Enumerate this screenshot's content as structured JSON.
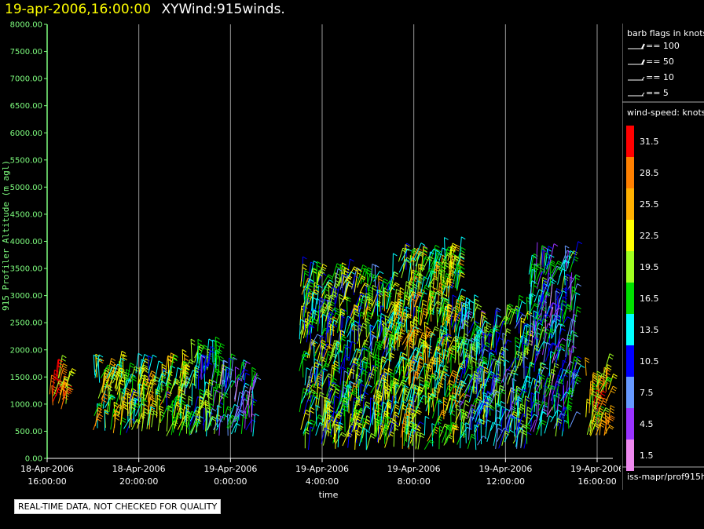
{
  "header": {
    "date": "19-apr-2006,16:00:00",
    "name": "XYWind:915winds."
  },
  "legend": {
    "barb_title": "barb flags in knots",
    "flags": [
      {
        "label": "== 100"
      },
      {
        "label": "== 50"
      },
      {
        "label": "== 10"
      },
      {
        "label": "== 5"
      }
    ],
    "speed_title": "wind-speed: knots",
    "scale": [
      {
        "label": "31.5",
        "color": "#ff0000"
      },
      {
        "label": "28.5",
        "color": "#ff8000"
      },
      {
        "label": "25.5",
        "color": "#ffb000"
      },
      {
        "label": "22.5",
        "color": "#ffff00"
      },
      {
        "label": "19.5",
        "color": "#a0ff20"
      },
      {
        "label": "16.5",
        "color": "#00e000"
      },
      {
        "label": "13.5",
        "color": "#00ffff"
      },
      {
        "label": "10.5",
        "color": "#0000ff"
      },
      {
        "label": "7.5",
        "color": "#6699ff"
      },
      {
        "label": "4.5",
        "color": "#9933ff"
      },
      {
        "label": "1.5",
        "color": "#ee88ee"
      }
    ],
    "source": "iss-mapr/prof915h"
  },
  "notice": "REAL-TIME DATA, NOT CHECKED FOR QUALITY",
  "chart_data": {
    "type": "scatter",
    "xlabel": "time",
    "ylabel": "915 Profiler Altitude (m agl)",
    "ylim": [
      0,
      8000
    ],
    "yticks": [
      "0.00",
      "500.00",
      "1000.00",
      "1500.00",
      "2000.00",
      "2500.00",
      "3000.00",
      "3500.00",
      "4000.00",
      "4500.00",
      "5000.00",
      "5500.00",
      "6000.00",
      "6500.00",
      "7000.00",
      "7500.00",
      "8000.00"
    ],
    "xticks": [
      {
        "date": "18-Apr-2006",
        "time": "16:00:00"
      },
      {
        "date": "18-Apr-2006",
        "time": "20:00:00"
      },
      {
        "date": "19-Apr-2006",
        "time": "0:00:00"
      },
      {
        "date": "19-Apr-2006",
        "time": "4:00:00"
      },
      {
        "date": "19-Apr-2006",
        "time": "8:00:00"
      },
      {
        "date": "19-Apr-2006",
        "time": "12:00:00"
      },
      {
        "date": "19-Apr-2006",
        "time": "16:00:00"
      }
    ],
    "grid": "vertical lines at ticks",
    "segments": [
      {
        "from": "18-Apr-2006 16:00",
        "to": "18-Apr-2006 17:00",
        "alt_min": 900,
        "alt_max": 1500,
        "dominant_speed": 25.5
      },
      {
        "from": "18-Apr-2006 18:00",
        "to": "18-Apr-2006 20:00",
        "alt_min": 400,
        "alt_max": 1600,
        "dominant_speed": 19.5
      },
      {
        "from": "18-Apr-2006 20:00",
        "to": "18-Apr-2006 22:00",
        "alt_min": 400,
        "alt_max": 1600,
        "dominant_speed": 19.5
      },
      {
        "from": "18-Apr-2006 22:00",
        "to": "18-Apr-2006 23:30",
        "alt_min": 400,
        "alt_max": 1900,
        "dominant_speed": 13.5
      },
      {
        "from": "18-Apr-2006 23:30",
        "to": "19-Apr-2006 01:00",
        "alt_min": 400,
        "alt_max": 1500,
        "dominant_speed": 10.5
      },
      {
        "from": "19-Apr-2006 03:00",
        "to": "19-Apr-2006 07:00",
        "alt_min": 150,
        "alt_max": 3300,
        "dominant_speed": 16.5
      },
      {
        "from": "19-Apr-2006 07:00",
        "to": "19-Apr-2006 10:00",
        "alt_min": 150,
        "alt_max": 3700,
        "dominant_speed": 19.5
      },
      {
        "from": "19-Apr-2006 10:00",
        "to": "19-Apr-2006 13:00",
        "alt_min": 150,
        "alt_max": 2600,
        "dominant_speed": 13.5
      },
      {
        "from": "19-Apr-2006 13:00",
        "to": "19-Apr-2006 15:00",
        "alt_min": 400,
        "alt_max": 3600,
        "dominant_speed": 10.5
      },
      {
        "from": "19-Apr-2006 15:30",
        "to": "19-Apr-2006 16:30",
        "alt_min": 400,
        "alt_max": 1600,
        "dominant_speed": 22.5
      }
    ]
  }
}
